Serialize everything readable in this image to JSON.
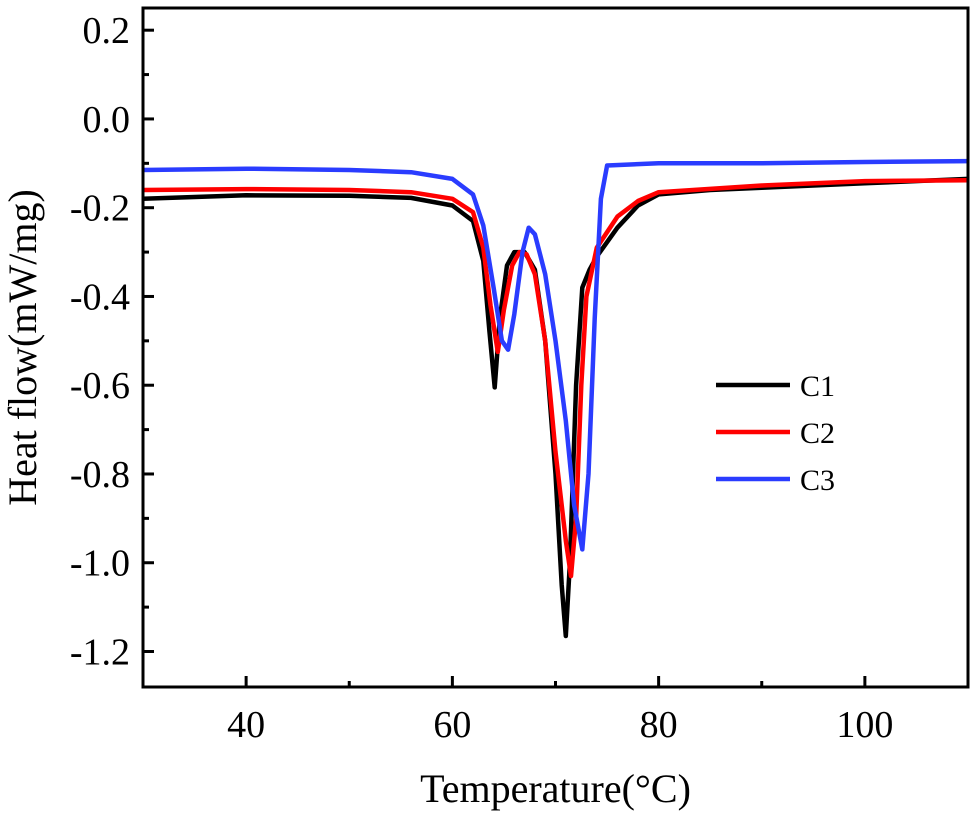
{
  "chart_data": {
    "type": "line",
    "xlabel": "Temperature(°C)",
    "ylabel": "Heat flow(mW/mg)",
    "xlim": [
      30,
      110
    ],
    "ylim": [
      -1.28,
      0.25
    ],
    "x_ticks": [
      40,
      60,
      80,
      100
    ],
    "y_ticks": [
      0.2,
      0.0,
      -0.2,
      -0.4,
      -0.6,
      -0.8,
      -1.0,
      -1.2
    ],
    "x_tick_labels": [
      "40",
      "60",
      "80",
      "100"
    ],
    "y_tick_labels": [
      "0.2",
      "0.0",
      "-0.2",
      "-0.4",
      "-0.6",
      "-0.8",
      "-1.0",
      "-1.2"
    ],
    "grid": false,
    "legend_position": "center-right",
    "series": [
      {
        "name": "C1",
        "color": "#000000",
        "points": [
          [
            30,
            -0.18
          ],
          [
            40,
            -0.172
          ],
          [
            50,
            -0.173
          ],
          [
            56,
            -0.178
          ],
          [
            60,
            -0.195
          ],
          [
            62,
            -0.23
          ],
          [
            63,
            -0.32
          ],
          [
            63.6,
            -0.48
          ],
          [
            64.1,
            -0.605
          ],
          [
            64.6,
            -0.45
          ],
          [
            65.3,
            -0.33
          ],
          [
            66,
            -0.3
          ],
          [
            67,
            -0.3
          ],
          [
            68,
            -0.34
          ],
          [
            69,
            -0.5
          ],
          [
            70,
            -0.8
          ],
          [
            70.6,
            -1.05
          ],
          [
            71,
            -1.165
          ],
          [
            71.4,
            -1.0
          ],
          [
            72,
            -0.6
          ],
          [
            72.6,
            -0.38
          ],
          [
            73.3,
            -0.34
          ],
          [
            74,
            -0.31
          ],
          [
            76,
            -0.245
          ],
          [
            78,
            -0.195
          ],
          [
            80,
            -0.17
          ],
          [
            85,
            -0.16
          ],
          [
            90,
            -0.155
          ],
          [
            100,
            -0.145
          ],
          [
            110,
            -0.135
          ]
        ]
      },
      {
        "name": "C2",
        "color": "#ff0000",
        "points": [
          [
            30,
            -0.16
          ],
          [
            40,
            -0.158
          ],
          [
            50,
            -0.16
          ],
          [
            56,
            -0.165
          ],
          [
            60,
            -0.18
          ],
          [
            62,
            -0.21
          ],
          [
            63,
            -0.29
          ],
          [
            63.7,
            -0.42
          ],
          [
            64.4,
            -0.525
          ],
          [
            65,
            -0.43
          ],
          [
            65.8,
            -0.33
          ],
          [
            66.5,
            -0.3
          ],
          [
            67.2,
            -0.305
          ],
          [
            68,
            -0.35
          ],
          [
            69,
            -0.5
          ],
          [
            70,
            -0.75
          ],
          [
            71,
            -0.95
          ],
          [
            71.5,
            -1.03
          ],
          [
            72,
            -0.9
          ],
          [
            72.5,
            -0.6
          ],
          [
            73,
            -0.4
          ],
          [
            74,
            -0.29
          ],
          [
            76,
            -0.22
          ],
          [
            78,
            -0.185
          ],
          [
            80,
            -0.165
          ],
          [
            90,
            -0.15
          ],
          [
            100,
            -0.14
          ],
          [
            110,
            -0.138
          ]
        ]
      },
      {
        "name": "C3",
        "color": "#2a3cff",
        "points": [
          [
            30,
            -0.115
          ],
          [
            40,
            -0.112
          ],
          [
            50,
            -0.115
          ],
          [
            56,
            -0.12
          ],
          [
            60,
            -0.135
          ],
          [
            62,
            -0.17
          ],
          [
            63,
            -0.24
          ],
          [
            64,
            -0.38
          ],
          [
            64.8,
            -0.5
          ],
          [
            65.4,
            -0.52
          ],
          [
            66,
            -0.44
          ],
          [
            66.8,
            -0.3
          ],
          [
            67.4,
            -0.245
          ],
          [
            68,
            -0.26
          ],
          [
            69,
            -0.35
          ],
          [
            70,
            -0.5
          ],
          [
            71,
            -0.68
          ],
          [
            71.8,
            -0.87
          ],
          [
            72.6,
            -0.97
          ],
          [
            73.2,
            -0.8
          ],
          [
            73.8,
            -0.45
          ],
          [
            74.4,
            -0.18
          ],
          [
            75,
            -0.105
          ],
          [
            80,
            -0.1
          ],
          [
            90,
            -0.1
          ],
          [
            100,
            -0.097
          ],
          [
            110,
            -0.095
          ]
        ]
      }
    ]
  }
}
